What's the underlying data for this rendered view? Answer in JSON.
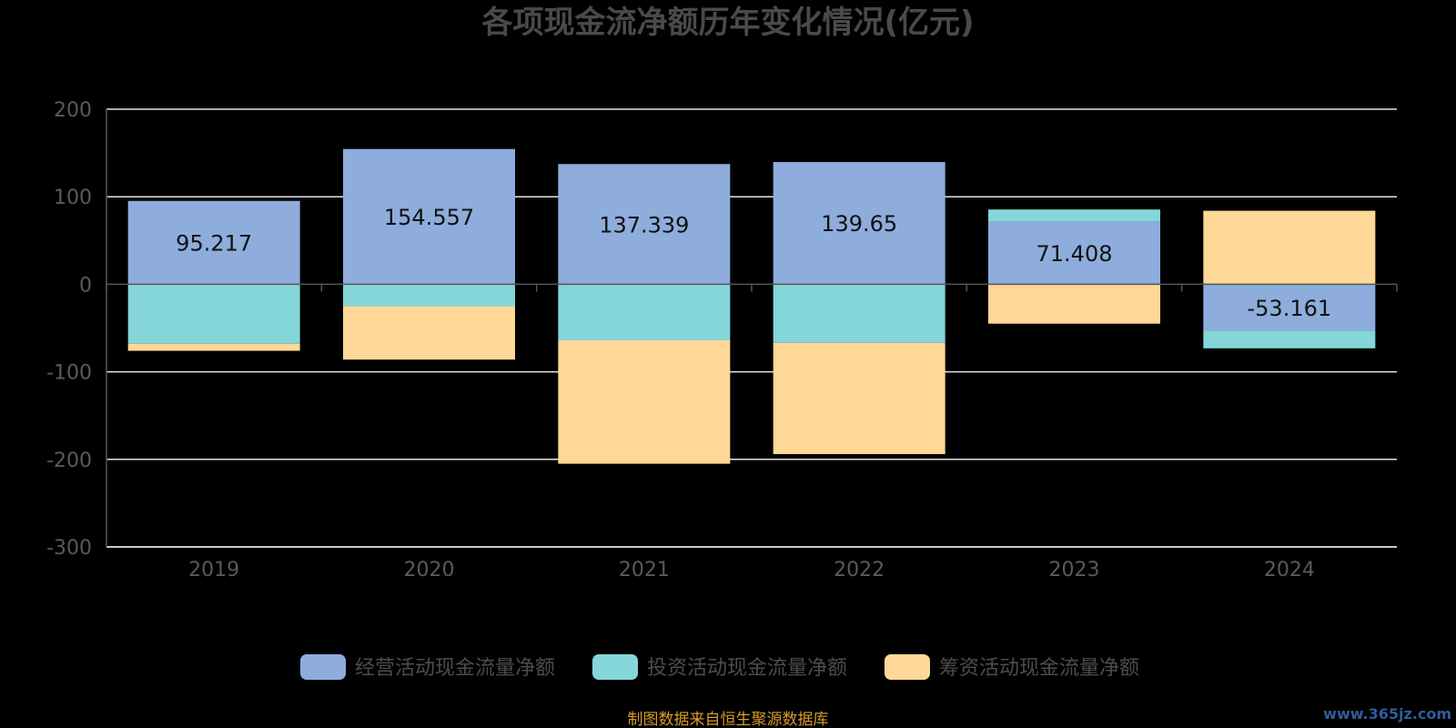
{
  "title": "各项现金流净额历年变化情况(亿元)",
  "source": "制图数据来自恒生聚源数据库",
  "watermark": "www.365jz.com",
  "chart_data": {
    "type": "bar",
    "stacked": true,
    "categories": [
      "2019",
      "2020",
      "2021",
      "2022",
      "2023",
      "2024"
    ],
    "ylim": [
      -300,
      200
    ],
    "yticks": [
      200,
      100,
      0,
      -100,
      -200,
      -300
    ],
    "grid": true,
    "legend_position": "bottom",
    "series": [
      {
        "name": "经营活动现金流量净额",
        "color": "#8eaddc",
        "values": [
          95.217,
          154.557,
          137.339,
          139.65,
          71.408,
          -53.161
        ]
      },
      {
        "name": "投资活动现金流量净额",
        "color": "#85d6d9",
        "values": [
          -68,
          -25,
          -64,
          -67,
          14,
          -20
        ]
      },
      {
        "name": "筹资活动现金流量净额",
        "color": "#ffd897",
        "values": [
          -8,
          -61,
          -141,
          -127,
          -45,
          84
        ]
      }
    ],
    "data_labels": [
      "95.217",
      "154.557",
      "137.339",
      "139.65",
      "71.408",
      "-53.161"
    ]
  }
}
